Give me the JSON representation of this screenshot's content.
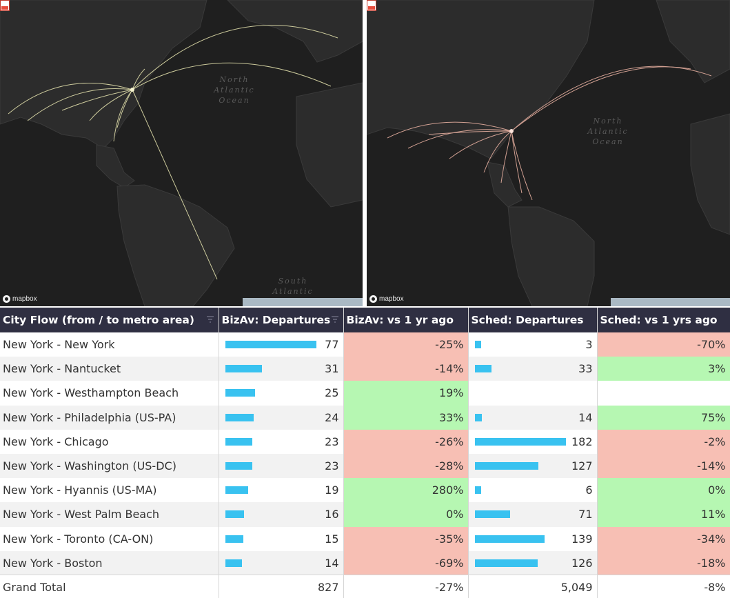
{
  "maps": {
    "left": {
      "ocean_label_1": "North\nAtlantic\nOcean",
      "ocean_label_2": "South\nAtlantic",
      "logo": "mapbox",
      "flow_color": "#e8e6b0"
    },
    "right": {
      "ocean_label_1": "North\nAtlantic\nOcean",
      "logo": "mapbox",
      "flow_color": "#f0b6a6"
    }
  },
  "table": {
    "headers": [
      "City Flow (from / to metro area)",
      "BizAv: Departures",
      "BizAv: vs 1 yr ago",
      "Sched: Departures",
      "Sched: vs 1 yrs ago"
    ],
    "rows": [
      {
        "flow": "New York - New York",
        "bizav": "77",
        "bizav_val": 77,
        "bizav_chg": "-25%",
        "bizav_sign": "neg",
        "sched": "3",
        "sched_val": 3,
        "sched_chg": "-70%",
        "sched_sign": "neg"
      },
      {
        "flow": "New York - Nantucket",
        "bizav": "31",
        "bizav_val": 31,
        "bizav_chg": "-14%",
        "bizav_sign": "neg",
        "sched": "33",
        "sched_val": 33,
        "sched_chg": "3%",
        "sched_sign": "pos"
      },
      {
        "flow": "New York - Westhampton Beach",
        "bizav": "25",
        "bizav_val": 25,
        "bizav_chg": "19%",
        "bizav_sign": "pos",
        "sched": "",
        "sched_val": 0,
        "sched_chg": "",
        "sched_sign": "blank"
      },
      {
        "flow": "New York - Philadelphia (US-PA)",
        "bizav": "24",
        "bizav_val": 24,
        "bizav_chg": "33%",
        "bizav_sign": "pos",
        "sched": "14",
        "sched_val": 14,
        "sched_chg": "75%",
        "sched_sign": "pos"
      },
      {
        "flow": "New York - Chicago",
        "bizav": "23",
        "bizav_val": 23,
        "bizav_chg": "-26%",
        "bizav_sign": "neg",
        "sched": "182",
        "sched_val": 182,
        "sched_chg": "-2%",
        "sched_sign": "neg"
      },
      {
        "flow": "New York - Washington (US-DC)",
        "bizav": "23",
        "bizav_val": 23,
        "bizav_chg": "-28%",
        "bizav_sign": "neg",
        "sched": "127",
        "sched_val": 127,
        "sched_chg": "-14%",
        "sched_sign": "neg"
      },
      {
        "flow": "New York - Hyannis (US-MA)",
        "bizav": "19",
        "bizav_val": 19,
        "bizav_chg": "280%",
        "bizav_sign": "pos",
        "sched": "6",
        "sched_val": 6,
        "sched_chg": "0%",
        "sched_sign": "pos"
      },
      {
        "flow": "New York - West Palm Beach",
        "bizav": "16",
        "bizav_val": 16,
        "bizav_chg": "0%",
        "bizav_sign": "pos",
        "sched": "71",
        "sched_val": 71,
        "sched_chg": "11%",
        "sched_sign": "pos"
      },
      {
        "flow": "New York - Toronto (CA-ON)",
        "bizav": "15",
        "bizav_val": 15,
        "bizav_chg": "-35%",
        "bizav_sign": "neg",
        "sched": "139",
        "sched_val": 139,
        "sched_chg": "-34%",
        "sched_sign": "neg"
      },
      {
        "flow": "New York - Boston",
        "bizav": "14",
        "bizav_val": 14,
        "bizav_chg": "-69%",
        "bizav_sign": "neg",
        "sched": "126",
        "sched_val": 126,
        "sched_chg": "-18%",
        "sched_sign": "neg"
      }
    ],
    "bizav_max": 77,
    "sched_max": 182,
    "total": {
      "label": "Grand Total",
      "bizav": "827",
      "bizav_chg": "-27%",
      "sched": "5,049",
      "sched_chg": "-8%"
    }
  },
  "colors": {
    "header_bg": "#2f2f42",
    "bar": "#39c2f0",
    "negative": "#f7bfb4",
    "positive": "#b6f7b2"
  }
}
